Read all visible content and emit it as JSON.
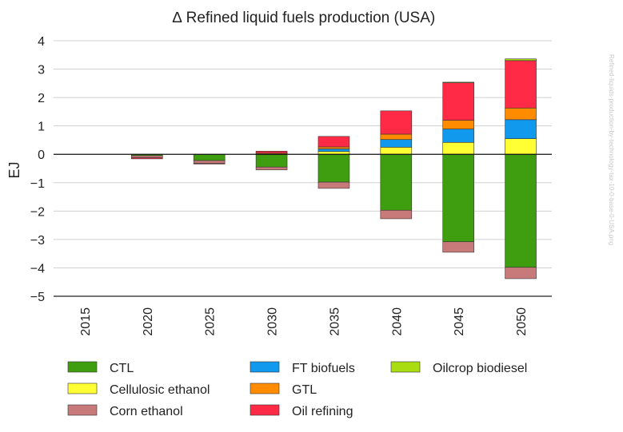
{
  "chart_data": {
    "type": "bar",
    "stacked": true,
    "title": "∆ Refined liquid fuels production (USA)",
    "ylabel": "EJ",
    "xlabel": "",
    "ylim": [
      -5,
      4
    ],
    "yticks": [
      4,
      3,
      2,
      1,
      0,
      -1,
      -2,
      -3,
      -4,
      -5
    ],
    "ytick_labels": [
      "4",
      "3",
      "2",
      "1",
      "0",
      "−1",
      "−2",
      "−3",
      "−4",
      "−5"
    ],
    "grid": true,
    "legend_position": "bottom",
    "categories": [
      "2015",
      "2020",
      "2025",
      "2030",
      "2035",
      "2040",
      "2045",
      "2050"
    ],
    "series": [
      {
        "name": "CTL",
        "color": "#3f9e0f",
        "values": [
          0,
          -0.05,
          -0.22,
          -0.45,
          -0.98,
          -1.97,
          -3.08,
          -3.98
        ]
      },
      {
        "name": "Cellulosic ethanol",
        "color": "#ffff33",
        "values": [
          0,
          0,
          0,
          0.01,
          0.1,
          0.25,
          0.42,
          0.55
        ]
      },
      {
        "name": "Corn ethanol",
        "color": "#c87a7a",
        "values": [
          0,
          -0.07,
          -0.1,
          -0.1,
          -0.22,
          -0.3,
          -0.37,
          -0.4
        ]
      },
      {
        "name": "FT biofuels",
        "color": "#1199ee",
        "values": [
          0,
          0,
          0,
          0,
          0.09,
          0.27,
          0.47,
          0.67
        ]
      },
      {
        "name": "GTL",
        "color": "#ff8c00",
        "values": [
          0,
          0,
          0,
          0.03,
          0.07,
          0.19,
          0.31,
          0.41
        ]
      },
      {
        "name": "Oil refining",
        "color": "#ff2a45",
        "values": [
          0,
          -0.04,
          -0.02,
          0.07,
          0.37,
          0.82,
          1.33,
          1.67
        ]
      },
      {
        "name": "Oilcrop biodiesel",
        "color": "#aadd11",
        "values": [
          0,
          0,
          0,
          0,
          0,
          0,
          0.01,
          0.06
        ]
      }
    ],
    "watermark": "Refined-liquids-production-by-technology-tax-10-0-base-0-USA.png"
  }
}
